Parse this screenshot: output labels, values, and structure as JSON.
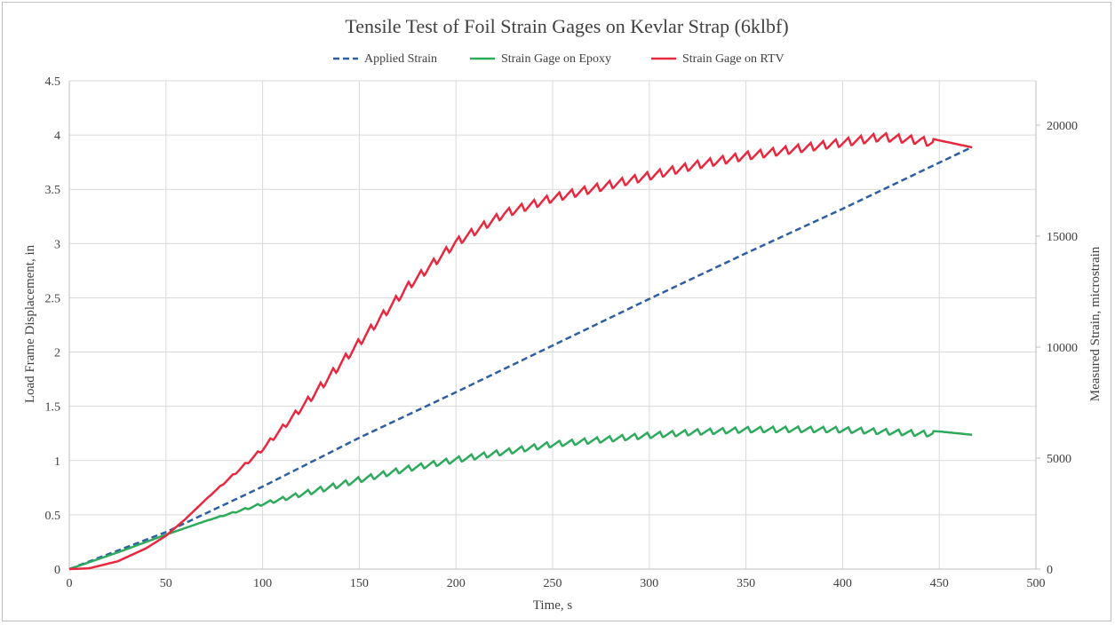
{
  "chart_data": {
    "type": "line",
    "title": "Tensile Test of Foil Strain Gages on Kevlar Strap (6klbf)",
    "xlabel": "Time, s",
    "ylabel_left": "Load Frame Displacement, in",
    "ylabel_right": "Measured Strain, microstrain",
    "xlim": [
      0,
      500
    ],
    "ylim_left": [
      0,
      4.5
    ],
    "ylim_right": [
      0,
      22000
    ],
    "x_ticks": [
      "0",
      "50",
      "100",
      "150",
      "200",
      "250",
      "300",
      "350",
      "400",
      "450",
      "500"
    ],
    "y_left_ticks": [
      "0",
      "0.5",
      "1",
      "1.5",
      "2",
      "2.5",
      "3",
      "3.5",
      "4",
      "4.5"
    ],
    "y_right_ticks": [
      "0",
      "5000",
      "10000",
      "15000",
      "20000"
    ],
    "grid": true,
    "legend_position": "top",
    "series": [
      {
        "name": "Applied Strain",
        "axis": "left",
        "color": "#2e5fa3",
        "style": "dashed",
        "x": [
          0,
          50,
          100,
          150,
          200,
          250,
          300,
          350,
          400,
          467
        ],
        "y": [
          0,
          0.34,
          0.76,
          1.21,
          1.63,
          2.06,
          2.49,
          2.91,
          3.32,
          3.89
        ]
      },
      {
        "name": "Strain Gage on Epoxy",
        "axis": "right",
        "color": "#2eaa5c",
        "style": "solid",
        "x": [
          0,
          25,
          50,
          75,
          100,
          125,
          150,
          175,
          200,
          225,
          250,
          275,
          300,
          325,
          350,
          375,
          400,
          425,
          450,
          467
        ],
        "y": [
          0,
          750,
          1550,
          2300,
          3000,
          3600,
          4150,
          4650,
          5050,
          5400,
          5750,
          5950,
          6150,
          6300,
          6400,
          6420,
          6400,
          6300,
          6200,
          6050
        ]
      },
      {
        "name": "Strain Gage on RTV",
        "axis": "right",
        "color": "#e8283f",
        "style": "solid",
        "x": [
          0,
          10,
          25,
          40,
          50,
          60,
          75,
          100,
          125,
          150,
          175,
          200,
          225,
          250,
          275,
          300,
          325,
          350,
          375,
          400,
          420,
          440,
          467
        ],
        "y": [
          0,
          30,
          350,
          950,
          1500,
          2250,
          3500,
          5500,
          7900,
          10400,
          12900,
          14900,
          16200,
          16900,
          17400,
          17900,
          18400,
          18800,
          19100,
          19400,
          19650,
          19500,
          19000
        ]
      }
    ]
  }
}
